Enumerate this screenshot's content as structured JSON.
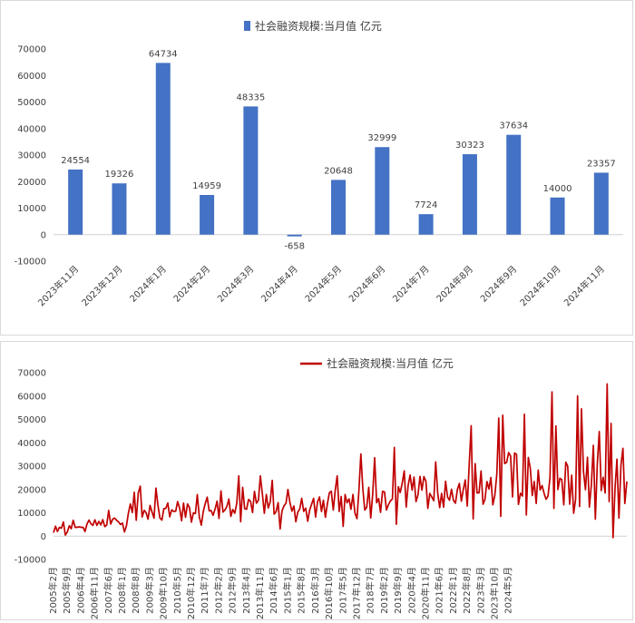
{
  "chart_data": [
    {
      "type": "bar",
      "series": [
        {
          "name": "社会融资规模:当月值 亿元",
          "color": "#4472c4",
          "values": [
            24554,
            19326,
            64734,
            14959,
            48335,
            -658,
            20648,
            32999,
            7724,
            30323,
            37634,
            14000,
            23357
          ]
        }
      ],
      "categories": [
        "2023年11月",
        "2023年12月",
        "2024年1月",
        "2024年2月",
        "2024年3月",
        "2024年4月",
        "2024年5月",
        "2024年6月",
        "2024年7月",
        "2024年8月",
        "2024年9月",
        "2024年10月",
        "2024年11月"
      ],
      "yticks": [
        "-10000",
        "0",
        "10000",
        "20000",
        "30000",
        "40000",
        "50000",
        "60000",
        "70000"
      ],
      "ylim": [
        -10000,
        70000
      ],
      "legend_position": "top",
      "grid": false
    },
    {
      "type": "line",
      "series": [
        {
          "name": "社会融资规模:当月值 亿元",
          "color": "#c00000",
          "values": [
            1500,
            4300,
            2000,
            3800,
            3400,
            6100,
            500,
            1800,
            4500,
            3200,
            6800,
            3800,
            3800,
            4000,
            3800,
            3800,
            2000,
            5200,
            6900,
            5300,
            4600,
            7000,
            4600,
            6300,
            4800,
            7100,
            4100,
            4700,
            11000,
            5200,
            7300,
            7800,
            6800,
            6100,
            5000,
            5600,
            1800,
            4500,
            9800,
            13800,
            10100,
            18800,
            6800,
            18500,
            21400,
            8200,
            11100,
            10000,
            7300,
            13200,
            10300,
            7700,
            20600,
            13300,
            7800,
            6900,
            11800,
            11900,
            14200,
            8300,
            11300,
            10600,
            10700,
            14800,
            12000,
            6600,
            14200,
            8100,
            13800,
            12200,
            6000,
            10000,
            9700,
            17800,
            8300,
            4700,
            10600,
            13900,
            16700,
            10800,
            11000,
            8900,
            11600,
            15000,
            7600,
            19400,
            10300,
            11200,
            12700,
            15900,
            8500,
            11400,
            9800,
            14100,
            25800,
            6200,
            20900,
            11800,
            11500,
            15700,
            14900,
            10100,
            19200,
            14100,
            15400,
            25800,
            18200,
            9800,
            17900,
            12100,
            14700,
            23900,
            9400,
            10500,
            14400,
            3100,
            10900,
            13000,
            14100,
            20000,
            14400,
            10700,
            12900,
            6200,
            10300,
            11700,
            16200,
            10600,
            12000,
            6400,
            11100,
            13700,
            16200,
            8200,
            14600,
            16800,
            10600,
            15400,
            8100,
            13900,
            18600,
            19300,
            11200,
            19800,
            25800,
            10600,
            17000,
            4200,
            17800,
            14300,
            16000,
            11500,
            17900,
            9900,
            7500,
            19200,
            35200,
            20200,
            11200,
            12400,
            20900,
            7800,
            17700,
            33600,
            14300,
            16100,
            10200,
            19200,
            18900,
            11200,
            13500,
            15100,
            16000,
            38000,
            5100,
            21200,
            18700,
            22700,
            28000,
            12500,
            21700,
            26200,
            19700,
            25300,
            14800,
            17700,
            25600,
            19700,
            25500,
            23600,
            11900,
            18300,
            16700,
            15200,
            31800,
            18500,
            12200,
            18300,
            12400,
            23500,
            16700,
            15400,
            20100,
            15300,
            14100,
            20000,
            22600,
            15000,
            19900,
            24100,
            12900,
            31200,
            47300,
            7400,
            31100,
            18500,
            18600,
            27900,
            13700,
            15700,
            23400,
            20200,
            25100,
            13400,
            17500,
            26700,
            50600,
            8500,
            51800,
            31100,
            31600,
            35800,
            34300,
            16800,
            35600,
            35000,
            13600,
            18400,
            17200,
            52200,
            9100,
            33700,
            29100,
            17400,
            23400,
            14000,
            28300,
            19800,
            21700,
            18300,
            15800,
            17200,
            25100,
            61800,
            11900,
            47200,
            20000,
            24800,
            24200,
            13400,
            31700,
            30000,
            13700,
            26100,
            9800,
            15700,
            60100,
            12700,
            54500,
            27700,
            19900,
            33800,
            12500,
            22000,
            38900,
            7300,
            30500,
            44800,
            19500,
            25200,
            18500,
            65200,
            14800,
            48300,
            -600,
            20600,
            33000,
            7700,
            30300,
            37600,
            14000,
            23400
          ]
        }
      ],
      "xticks": [
        "2005年2月",
        "2005年9月",
        "2006年4月",
        "2006年11月",
        "2007年6月",
        "2008年1月",
        "2008年8月",
        "2009年3月",
        "2009年10月",
        "2010年5月",
        "2010年12月",
        "2011年7月",
        "2012年2月",
        "2012年9月",
        "2013年4月",
        "2013年11月",
        "2014年6月",
        "2015年1月",
        "2015年8月",
        "2016年3月",
        "2016年10月",
        "2017年5月",
        "2017年12月",
        "2018年7月",
        "2019年2月",
        "2019年9月",
        "2020年4月",
        "2020年11月",
        "2021年6月",
        "2022年1月",
        "2022年8月",
        "2023年3月",
        "2023年10月",
        "2024年5月"
      ],
      "yticks": [
        "-10000",
        "0",
        "10000",
        "20000",
        "30000",
        "40000",
        "50000",
        "60000",
        "70000"
      ],
      "ylim": [
        -10000,
        70000
      ],
      "legend_position": "top",
      "grid": false
    }
  ]
}
